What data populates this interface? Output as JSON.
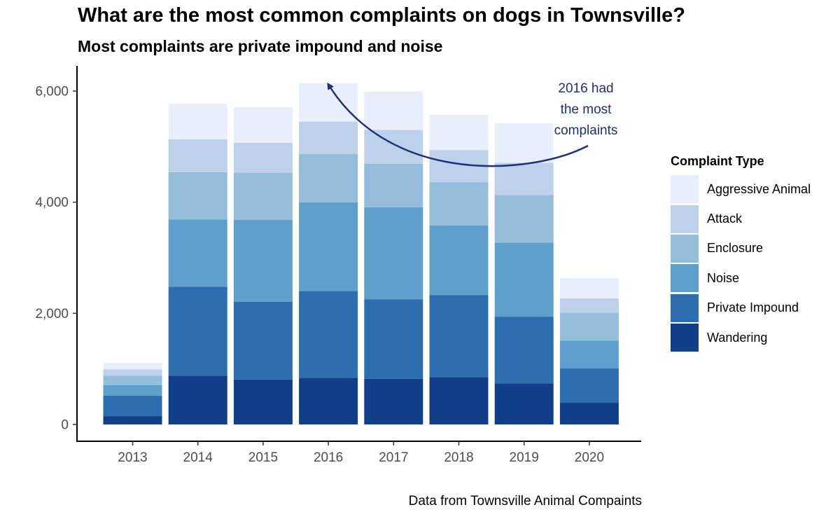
{
  "title": "What are the most common complaints on dogs in Townsville?",
  "subtitle": "Most complaints are private impound and noise",
  "caption": "Data from Townsville Animal Compaints",
  "legend": {
    "title": "Complaint Type",
    "items": [
      {
        "label": "Aggressive Animal",
        "color": "#e8effa"
      },
      {
        "label": "Attack",
        "color": "#bdd1ea"
      },
      {
        "label": "Enclosure",
        "color": "#93bdd9"
      },
      {
        "label": "Noise",
        "color": "#5e9fcb"
      },
      {
        "label": "Private Impound",
        "color": "#2c6eae"
      },
      {
        "label": "Wandering",
        "color": "#113e88"
      }
    ]
  },
  "annotation": {
    "lines": [
      "2016 had",
      "the most",
      "complaints"
    ],
    "color": "#1f2f7a"
  },
  "chart_data": {
    "type": "bar",
    "stacked": true,
    "categories": [
      "2013",
      "2014",
      "2015",
      "2016",
      "2017",
      "2018",
      "2019",
      "2020"
    ],
    "series": [
      {
        "name": "Wandering",
        "values": [
          150,
          880,
          810,
          840,
          820,
          850,
          740,
          390
        ]
      },
      {
        "name": "Private Impound",
        "values": [
          370,
          1600,
          1400,
          1560,
          1430,
          1480,
          1200,
          620
        ]
      },
      {
        "name": "Noise",
        "values": [
          190,
          1210,
          1470,
          1600,
          1660,
          1250,
          1330,
          500
        ]
      },
      {
        "name": "Enclosure",
        "values": [
          170,
          850,
          850,
          870,
          780,
          780,
          860,
          500
        ]
      },
      {
        "name": "Attack",
        "values": [
          110,
          590,
          540,
          580,
          610,
          580,
          580,
          260
        ]
      },
      {
        "name": "Aggressive Animal",
        "values": [
          120,
          640,
          640,
          690,
          690,
          630,
          710,
          360
        ]
      }
    ],
    "yticks": [
      0,
      2000,
      4000,
      6000
    ],
    "ytick_labels": [
      "0",
      "2,000",
      "4,000",
      "6,000"
    ],
    "ylim": [
      0,
      6300
    ],
    "xlabel": "",
    "ylabel": "",
    "grid": false,
    "legend_position": "right"
  }
}
